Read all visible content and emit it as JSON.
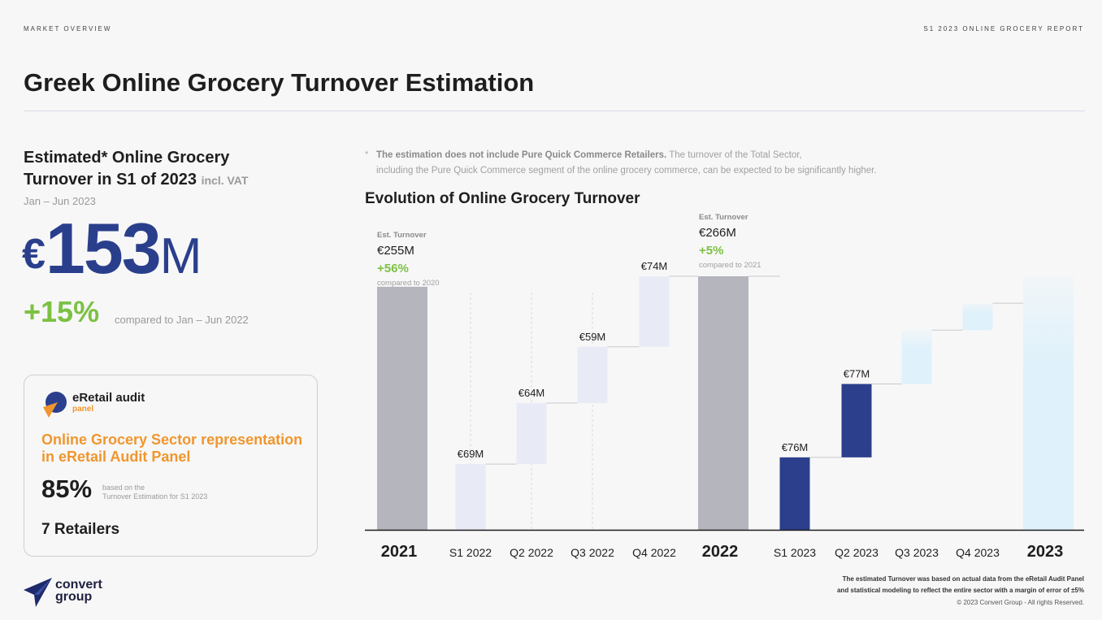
{
  "header": {
    "section_label": "MARKET OVERVIEW",
    "report_label": "S1 2023 ONLINE GROCERY REPORT",
    "title": "Greek Online Grocery Turnover Estimation"
  },
  "summary": {
    "heading_line1": "Estimated* Online Grocery",
    "heading_line2": "Turnover in S1 of 2023",
    "heading_suffix": "incl. VAT",
    "period": "Jan – Jun 2023",
    "value_currency": "€",
    "value_number": "153",
    "value_unit": "M",
    "growth": "+15%",
    "growth_note": "compared to Jan – Jun 2022"
  },
  "panel": {
    "brand": "eRetail audit",
    "brand_sub": "panel",
    "headline": "Online Grocery Sector representation in eRetail Audit Panel",
    "percent": "85%",
    "percent_note_line1": "based on the",
    "percent_note_line2": "Turnover Estimation for S1 2023",
    "retailers": "7 Retailers"
  },
  "footnote": {
    "star": "*",
    "bold_text": "The estimation does not include Pure Quick Commerce Retailers.",
    "text_line1": " The turnover of the Total Sector,",
    "text_line2": "including the Pure Quick Commerce segment of the online grocery commerce, can be expected to be significantly higher."
  },
  "chart_data": {
    "type": "bar",
    "subtype": "waterfall",
    "title": "Evolution of Online Grocery Turnover",
    "categories": [
      "2021",
      "S1 2022",
      "Q2 2022",
      "Q3 2022",
      "Q4 2022",
      "2022",
      "S1 2023",
      "Q2 2023",
      "Q3 2023",
      "Q4 2023",
      "2023"
    ],
    "values": [
      255,
      69,
      64,
      59,
      74,
      266,
      76,
      77,
      null,
      null,
      null
    ],
    "bar_kinds": [
      "total",
      "step",
      "step",
      "step",
      "step",
      "total",
      "step",
      "step",
      "projected",
      "projected",
      "projected-total"
    ],
    "data_labels": [
      "",
      "€69M",
      "€64M",
      "€59M",
      "€74M",
      "",
      "€76M",
      "€77M",
      "",
      "",
      ""
    ],
    "totals": [
      {
        "category": "2021",
        "caption": "Est. Turnover",
        "value_label": "€255M",
        "growth": "+56%",
        "growth_note": "compared to 2020"
      },
      {
        "category": "2022",
        "caption": "Est. Turnover",
        "value_label": "€266M",
        "growth": "+5%",
        "growth_note": "compared to 2021"
      }
    ],
    "unit": "€M",
    "ylim": [
      0,
      266
    ],
    "grid": false,
    "colors": {
      "total": "#b4b5bd",
      "step_2022": "#e8ebf5",
      "step_2023": "#2b3f8c",
      "projected": "#dff1fb",
      "axis": "#1e1e1e",
      "growth": "#7cc142"
    }
  },
  "footer": {
    "logo_line1": "convert",
    "logo_line2": "group",
    "note_line1": "The estimated Turnover was based on actual data from the eRetail Audit Panel",
    "note_line2": "and statistical modeling to reflect the entire sector with a margin of error of ±5%",
    "copyright": "© 2023 Convert Group - All rights Reserved."
  }
}
